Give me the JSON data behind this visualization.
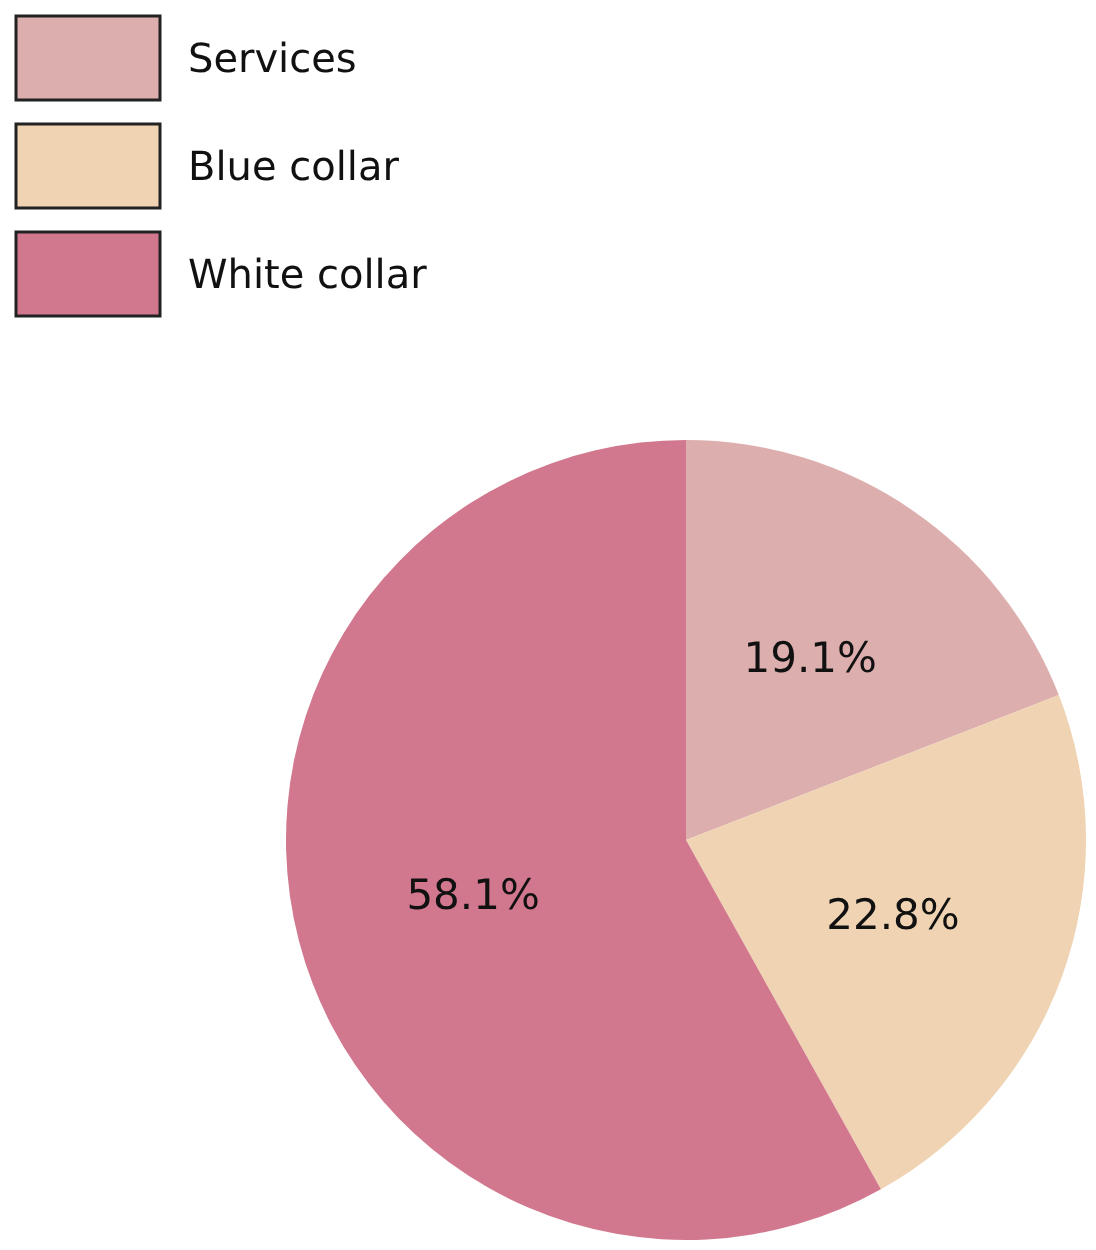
{
  "chart_data": {
    "type": "pie",
    "categories": [
      "Services",
      "Blue collar",
      "White collar"
    ],
    "values": [
      19.1,
      22.8,
      58.1
    ],
    "value_labels": [
      "19.1%",
      "22.8%",
      "58.1%"
    ],
    "colors": [
      "#ddaeae",
      "#efd3b2",
      "#d2788e"
    ],
    "legend": "top left"
  }
}
